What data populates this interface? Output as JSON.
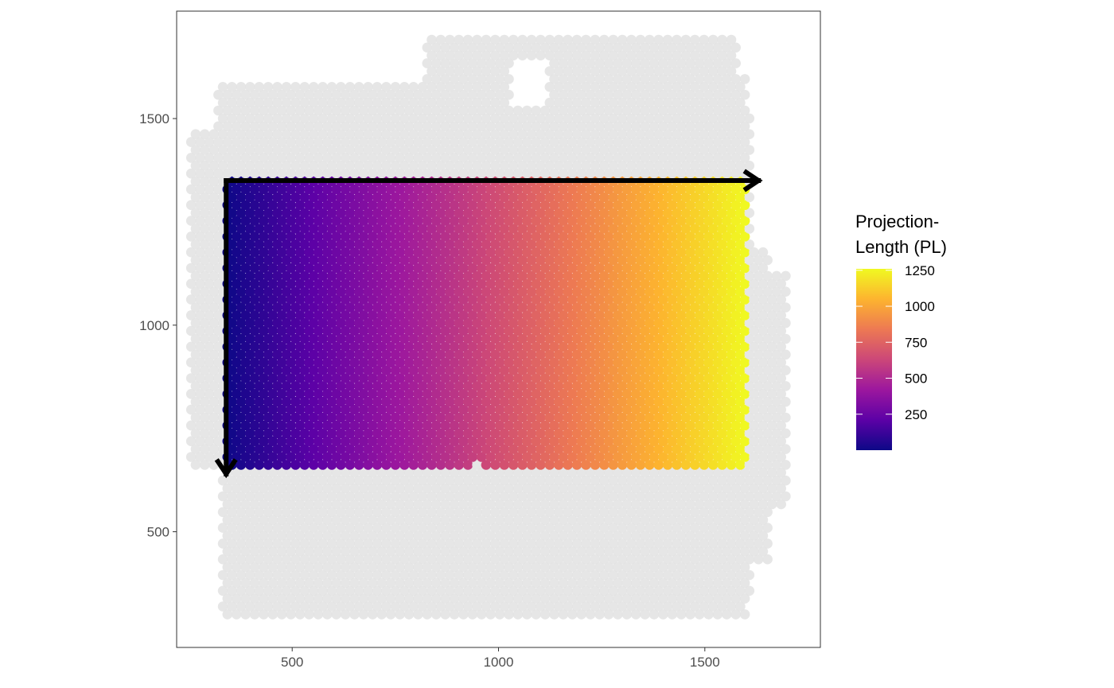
{
  "chart_data": {
    "type": "scatter",
    "title": "",
    "xlabel": "",
    "ylabel": "",
    "xlim": [
      220,
      1780
    ],
    "ylim": [
      220,
      1760
    ],
    "x_ticks": [
      500,
      1000,
      1500
    ],
    "y_ticks": [
      500,
      1000,
      1500
    ],
    "x_tick_labels": [
      "500",
      "1000",
      "1500"
    ],
    "y_tick_labels": [
      "500",
      "1000",
      "1500"
    ],
    "grid": false,
    "spot_spacing": 22,
    "background_color": "#e3e3e3",
    "colormap": "plasma",
    "colormap_stops": [
      "#0d0887",
      "#5c01a6",
      "#9c179e",
      "#cc4778",
      "#ed7953",
      "#fdb42f",
      "#f0f921"
    ],
    "arrow_color": "#000000",
    "tissue_region": {
      "x_range": [
        255,
        1705
      ],
      "y_range": [
        300,
        1705
      ]
    },
    "colored_region": {
      "x_range": [
        340,
        1600
      ],
      "y_range": [
        655,
        1350
      ],
      "value_range": [
        0,
        1260
      ],
      "value_axis": "x"
    },
    "trajectory_arrows": [
      {
        "from": [
          340,
          1350
        ],
        "to": [
          1630,
          1350
        ]
      },
      {
        "from": [
          340,
          1350
        ],
        "to": [
          340,
          640
        ]
      }
    ],
    "legend": {
      "title": [
        "Projection-",
        "Length (PL)"
      ],
      "position": "right",
      "values": [
        250,
        500,
        750,
        1000,
        1250
      ],
      "labels": [
        "250",
        "500",
        "750",
        "1000",
        "1250"
      ],
      "range": [
        0,
        1260
      ]
    }
  }
}
